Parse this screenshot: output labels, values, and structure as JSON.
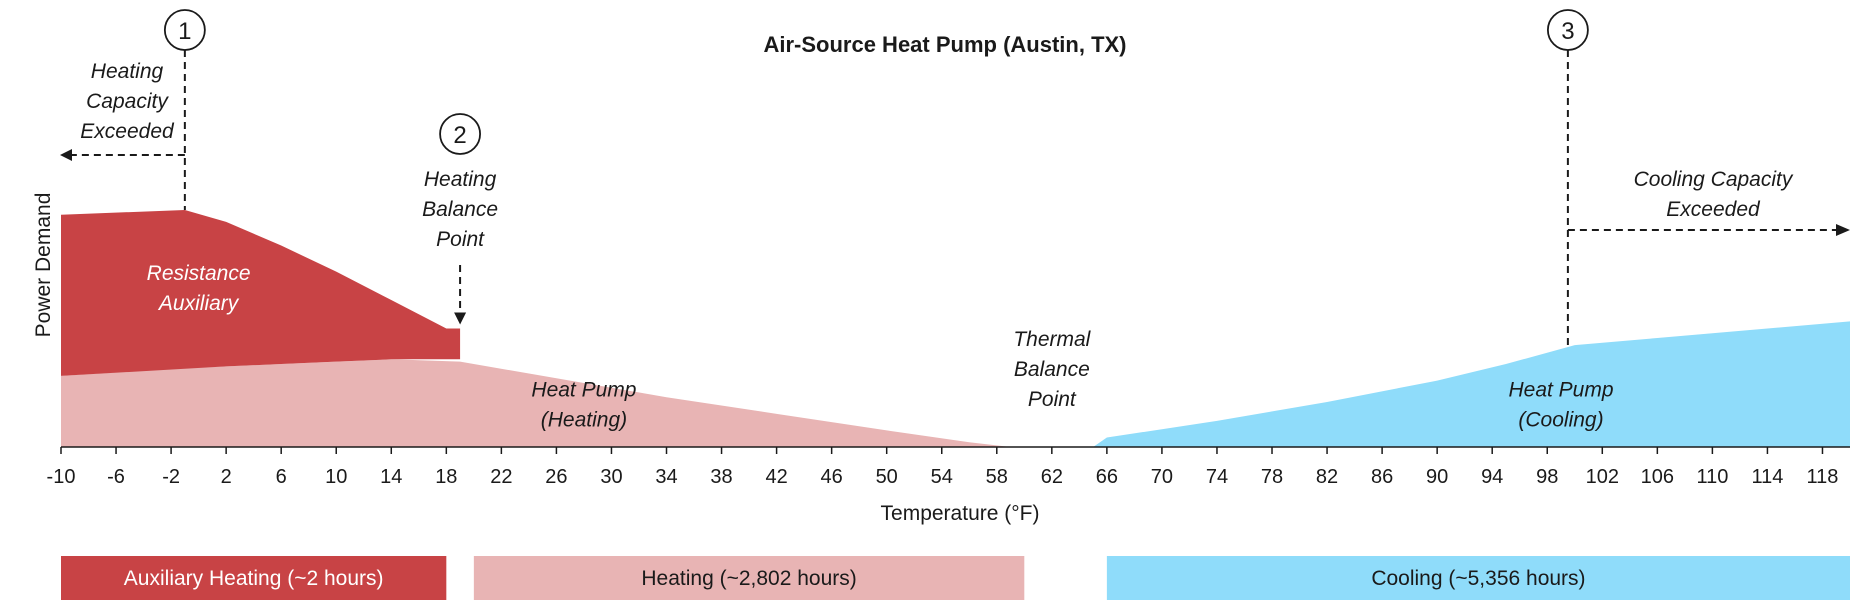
{
  "chart_data": {
    "type": "area",
    "title": "Air-Source Heat Pump (Austin, TX)",
    "xlabel": "Temperature (°F)",
    "ylabel": "Power Demand",
    "xlim": [
      -10,
      120
    ],
    "x_ticks": [
      -10,
      -6,
      -2,
      2,
      6,
      10,
      14,
      18,
      22,
      26,
      30,
      34,
      38,
      42,
      46,
      50,
      54,
      58,
      62,
      66,
      70,
      74,
      78,
      82,
      86,
      90,
      94,
      98,
      102,
      106,
      110,
      114,
      118
    ],
    "ylim": [
      0,
      1
    ],
    "grid": false,
    "colors": {
      "resistance": "#c84345",
      "heat_pump_heating": "#e8b4b4",
      "heat_pump_cooling": "#8fdcfa"
    },
    "series": [
      {
        "name": "Resistance Auxiliary",
        "x": [
          -10,
          -1,
          2,
          6,
          10,
          14,
          18,
          19
        ],
        "y": [
          0.98,
          1.0,
          0.95,
          0.85,
          0.74,
          0.62,
          0.5,
          0.5
        ],
        "baseline": [
          0.3,
          0.33,
          0.34,
          0.35,
          0.36,
          0.37,
          0.37,
          0.37
        ]
      },
      {
        "name": "Heat Pump (Heating)",
        "x": [
          -10,
          -2,
          6,
          14,
          19,
          26,
          34,
          42,
          50,
          56,
          59
        ],
        "y": [
          0.3,
          0.33,
          0.35,
          0.37,
          0.36,
          0.29,
          0.21,
          0.14,
          0.07,
          0.02,
          0.0
        ]
      },
      {
        "name": "Heat Pump (Cooling)",
        "x": [
          65,
          66,
          74,
          82,
          90,
          95,
          100,
          106,
          112,
          120
        ],
        "y": [
          0.0,
          0.04,
          0.11,
          0.19,
          0.28,
          0.35,
          0.43,
          0.46,
          0.49,
          0.53
        ]
      }
    ],
    "area_labels": [
      {
        "text": [
          "Resistance",
          "Auxiliary"
        ],
        "x": 0,
        "y": 0.67,
        "color": "white"
      },
      {
        "text": [
          "Heat Pump",
          "(Heating)"
        ],
        "x": 28,
        "y": 0.18,
        "color": "dark"
      },
      {
        "text": [
          "Thermal",
          "Balance",
          "Point"
        ],
        "x": 62,
        "y": 0.33,
        "color": "dark"
      },
      {
        "text": [
          "Heat Pump",
          "(Cooling)"
        ],
        "x": 99,
        "y": 0.18,
        "color": "dark"
      }
    ],
    "annotations": [
      {
        "number": "1",
        "x": -1,
        "text": [
          "Heating",
          "Capacity",
          "Exceeded"
        ],
        "arrow": "left"
      },
      {
        "number": "2",
        "x": 19,
        "text": [
          "Heating",
          "Balance",
          "Point"
        ],
        "arrow": "down"
      },
      {
        "number": "3",
        "x": 99.5,
        "text": [
          "Cooling Capacity",
          "Exceeded"
        ],
        "arrow": "right"
      }
    ],
    "bands": [
      {
        "label": "Auxiliary Heating (~2 hours)",
        "x0": -10,
        "x1": 18,
        "color": "#c84345",
        "text_color": "white"
      },
      {
        "label": "Heating (~2,802 hours)",
        "x0": 20,
        "x1": 60,
        "color": "#e8b4b4",
        "text_color": "dark"
      },
      {
        "label": "Cooling (~5,356 hours)",
        "x0": 66,
        "x1": 120,
        "color": "#8fdcfa",
        "text_color": "dark"
      }
    ]
  }
}
